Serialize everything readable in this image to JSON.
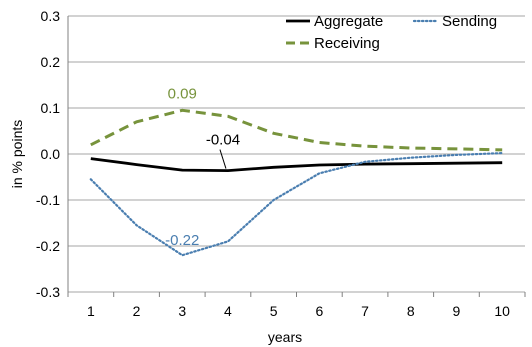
{
  "chart_data": {
    "type": "line",
    "title": "",
    "xlabel": "years",
    "ylabel": "in % points",
    "categories": [
      1,
      2,
      3,
      4,
      5,
      6,
      7,
      8,
      9,
      10
    ],
    "ylim": [
      -0.3,
      0.3
    ],
    "yticks": [
      "0.3",
      "0.2",
      "0.1",
      "0.0",
      "-0.1",
      "-0.2",
      "-0.3"
    ],
    "ytick_values": [
      0.3,
      0.2,
      0.1,
      0.0,
      -0.1,
      -0.2,
      -0.3
    ],
    "grid": "horizontal",
    "legend_position": "top-right",
    "series": [
      {
        "name": "Aggregate",
        "color": "#000000",
        "style": "solid",
        "values": [
          -0.01,
          -0.023,
          -0.035,
          -0.036,
          -0.029,
          -0.024,
          -0.022,
          -0.021,
          -0.02,
          -0.019
        ]
      },
      {
        "name": "Sending",
        "color": "#4a7eb0",
        "style": "dotted",
        "values": [
          -0.055,
          -0.155,
          -0.22,
          -0.19,
          -0.1,
          -0.042,
          -0.017,
          -0.008,
          -0.002,
          0.002
        ]
      },
      {
        "name": "Receiving",
        "color": "#77933c",
        "style": "dashed",
        "values": [
          0.02,
          0.07,
          0.095,
          0.082,
          0.045,
          0.025,
          0.017,
          0.013,
          0.011,
          0.009
        ]
      }
    ],
    "annotations": [
      {
        "text": "0.09",
        "series": "Receiving",
        "category": 3,
        "color": "#77933c"
      },
      {
        "text": "-0.04",
        "series": "Aggregate",
        "category": 4,
        "color": "#000000"
      },
      {
        "text": "-0.22",
        "series": "Sending",
        "category": 3,
        "color": "#4a7eb0"
      }
    ]
  }
}
